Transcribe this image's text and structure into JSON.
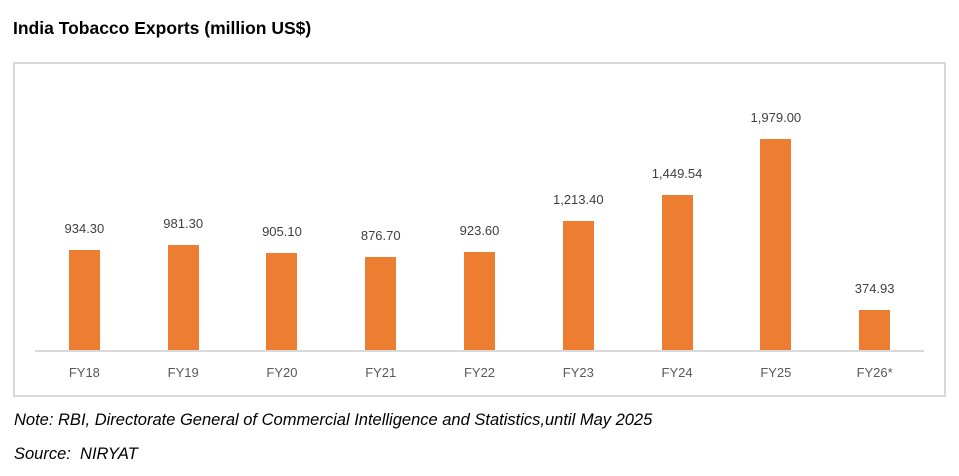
{
  "page": {
    "title": "India Tobacco Exports (million US$)",
    "note": "Note: RBI, Directorate General of Commercial Intelligence and Statistics,until May 2025",
    "source": "Source:  NIRYAT"
  },
  "colors": {
    "bar": "#ED7D31",
    "chart_border": "#D9D9D9",
    "axis_line": "#D9D9D9",
    "value_label": "#404040",
    "category_label": "#595959",
    "title": "#000000"
  },
  "chart_data": {
    "type": "bar",
    "title": "India Tobacco Exports (million US$)",
    "unit": "million US$",
    "categories": [
      "FY18",
      "FY19",
      "FY20",
      "FY21",
      "FY22",
      "FY23",
      "FY24",
      "FY25",
      "FY26*"
    ],
    "values": [
      934.3,
      981.3,
      905.1,
      876.7,
      923.6,
      1213.4,
      1449.54,
      1979.0,
      374.93
    ],
    "value_labels": [
      "934.30",
      "981.30",
      "905.10",
      "876.70",
      "923.60",
      "1,213.40",
      "1,449.54",
      "1,979.00",
      "374.93"
    ],
    "series_color": "#ED7D31",
    "grid": false,
    "legend": false,
    "y_axis_visible": false,
    "data_labels_position": "above-bar"
  }
}
